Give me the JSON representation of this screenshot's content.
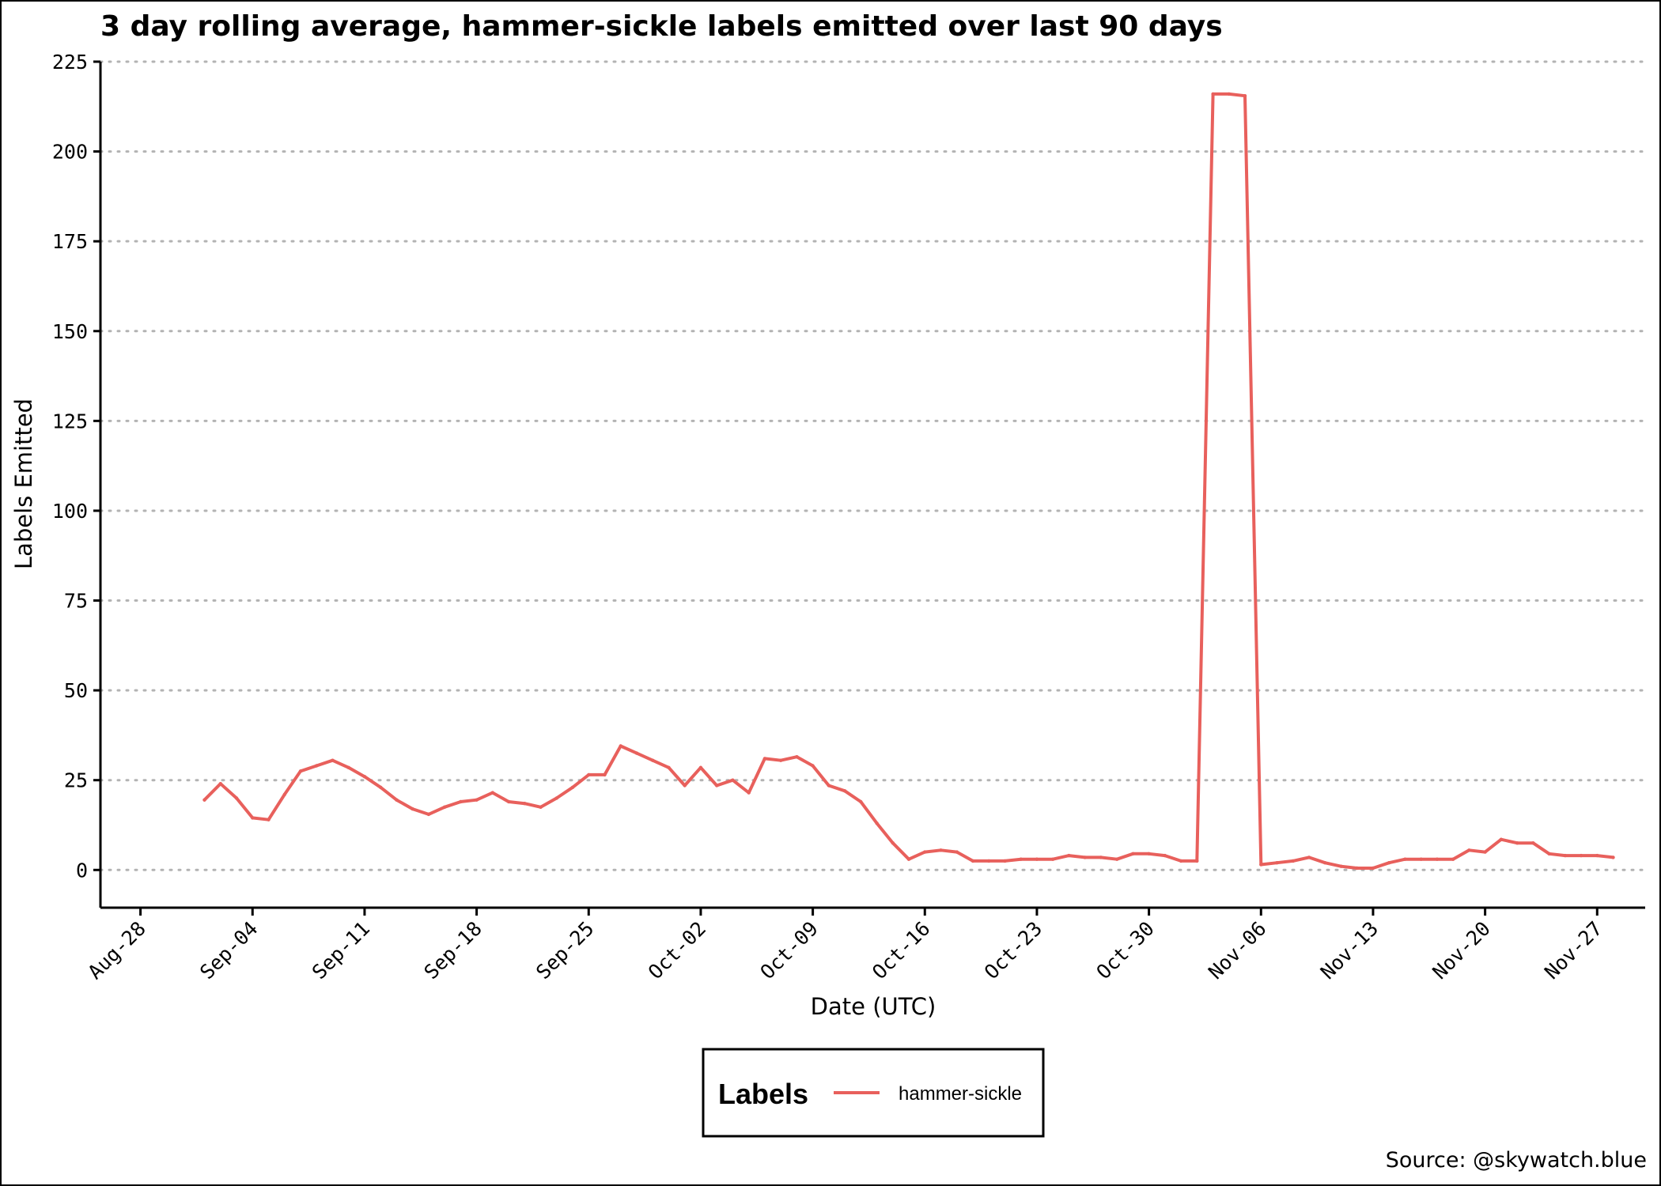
{
  "chart_data": {
    "type": "line",
    "title": "3 day rolling average, hammer-sickle labels emitted over last 90 days",
    "xlabel": "Date (UTC)",
    "ylabel": "Labels Emitted",
    "ylim": [
      -10.5,
      225
    ],
    "yticks": [
      0,
      25,
      50,
      75,
      100,
      125,
      150,
      175,
      200,
      225
    ],
    "ytick_labels": [
      "0",
      "25",
      "50",
      "75",
      "100",
      "125",
      "150",
      "175",
      "200",
      "225"
    ],
    "xlim": [
      "2023-08-25T12:00",
      "2023-11-30"
    ],
    "xticks": [
      "2023-08-28",
      "2023-09-04",
      "2023-09-11",
      "2023-09-18",
      "2023-09-25",
      "2023-10-02",
      "2023-10-09",
      "2023-10-16",
      "2023-10-23",
      "2023-10-30",
      "2023-11-06",
      "2023-11-13",
      "2023-11-20",
      "2023-11-27"
    ],
    "xtick_labels": [
      "Aug-28",
      "Sep-04",
      "Sep-11",
      "Sep-18",
      "Sep-25",
      "Oct-02",
      "Oct-09",
      "Oct-16",
      "Oct-23",
      "Oct-30",
      "Nov-06",
      "Nov-13",
      "Nov-20",
      "Nov-27"
    ],
    "grid": "horizontal dotted",
    "legend": {
      "title": "Labels",
      "position": "bottom",
      "items": [
        {
          "label": "hammer-sickle",
          "color": "#e8605c"
        }
      ]
    },
    "series": [
      {
        "name": "hammer-sickle",
        "color": "#e8605c",
        "points": [
          [
            "2023-09-01",
            19.5
          ],
          [
            "2023-09-02",
            24
          ],
          [
            "2023-09-03",
            20
          ],
          [
            "2023-09-04",
            14.5
          ],
          [
            "2023-09-05",
            14
          ],
          [
            "2023-09-06",
            21
          ],
          [
            "2023-09-07",
            27.5
          ],
          [
            "2023-09-08",
            29
          ],
          [
            "2023-09-09",
            30.5
          ],
          [
            "2023-09-10",
            28.5
          ],
          [
            "2023-09-11",
            26
          ],
          [
            "2023-09-12",
            23
          ],
          [
            "2023-09-13",
            19.5
          ],
          [
            "2023-09-14",
            17
          ],
          [
            "2023-09-15",
            15.5
          ],
          [
            "2023-09-16",
            17.5
          ],
          [
            "2023-09-17",
            19
          ],
          [
            "2023-09-18",
            19.5
          ],
          [
            "2023-09-19",
            21.5
          ],
          [
            "2023-09-20",
            19
          ],
          [
            "2023-09-21",
            18.5
          ],
          [
            "2023-09-22",
            17.5
          ],
          [
            "2023-09-23",
            20
          ],
          [
            "2023-09-24",
            23
          ],
          [
            "2023-09-25",
            26.5
          ],
          [
            "2023-09-26",
            26.5
          ],
          [
            "2023-09-27",
            34.5
          ],
          [
            "2023-09-28",
            32.5
          ],
          [
            "2023-09-29",
            30.5
          ],
          [
            "2023-09-30",
            28.5
          ],
          [
            "2023-10-01",
            23.5
          ],
          [
            "2023-10-02",
            28.5
          ],
          [
            "2023-10-03",
            23.5
          ],
          [
            "2023-10-04",
            25
          ],
          [
            "2023-10-05",
            21.5
          ],
          [
            "2023-10-06",
            31
          ],
          [
            "2023-10-07",
            30.5
          ],
          [
            "2023-10-08",
            31.5
          ],
          [
            "2023-10-09",
            29
          ],
          [
            "2023-10-10",
            23.5
          ],
          [
            "2023-10-11",
            22
          ],
          [
            "2023-10-12",
            19
          ],
          [
            "2023-10-13",
            13
          ],
          [
            "2023-10-14",
            7.5
          ],
          [
            "2023-10-15",
            3
          ],
          [
            "2023-10-16",
            5
          ],
          [
            "2023-10-17",
            5.5
          ],
          [
            "2023-10-18",
            5
          ],
          [
            "2023-10-19",
            2.5
          ],
          [
            "2023-10-20",
            2.5
          ],
          [
            "2023-10-21",
            2.5
          ],
          [
            "2023-10-22",
            3
          ],
          [
            "2023-10-23",
            3
          ],
          [
            "2023-10-24",
            3
          ],
          [
            "2023-10-25",
            4
          ],
          [
            "2023-10-26",
            3.5
          ],
          [
            "2023-10-27",
            3.5
          ],
          [
            "2023-10-28",
            3
          ],
          [
            "2023-10-29",
            4.5
          ],
          [
            "2023-10-30",
            4.5
          ],
          [
            "2023-10-31",
            4
          ],
          [
            "2023-11-01",
            2.5
          ],
          [
            "2023-11-02",
            2.5
          ],
          [
            "2023-11-03",
            216
          ],
          [
            "2023-11-04",
            216
          ],
          [
            "2023-11-05",
            215.5
          ],
          [
            "2023-11-06",
            1.5
          ],
          [
            "2023-11-07",
            2
          ],
          [
            "2023-11-08",
            2.5
          ],
          [
            "2023-11-09",
            3.5
          ],
          [
            "2023-11-10",
            2
          ],
          [
            "2023-11-11",
            1
          ],
          [
            "2023-11-12",
            0.5
          ],
          [
            "2023-11-13",
            0.5
          ],
          [
            "2023-11-14",
            2
          ],
          [
            "2023-11-15",
            3
          ],
          [
            "2023-11-16",
            3
          ],
          [
            "2023-11-17",
            3
          ],
          [
            "2023-11-18",
            3
          ],
          [
            "2023-11-19",
            5.5
          ],
          [
            "2023-11-20",
            5
          ],
          [
            "2023-11-21",
            8.5
          ],
          [
            "2023-11-22",
            7.5
          ],
          [
            "2023-11-23",
            7.5
          ],
          [
            "2023-11-24",
            4.5
          ],
          [
            "2023-11-25",
            4
          ],
          [
            "2023-11-26",
            4
          ],
          [
            "2023-11-27",
            4
          ],
          [
            "2023-11-28",
            3.5
          ]
        ]
      }
    ]
  },
  "source": "Source: @skywatch.blue"
}
